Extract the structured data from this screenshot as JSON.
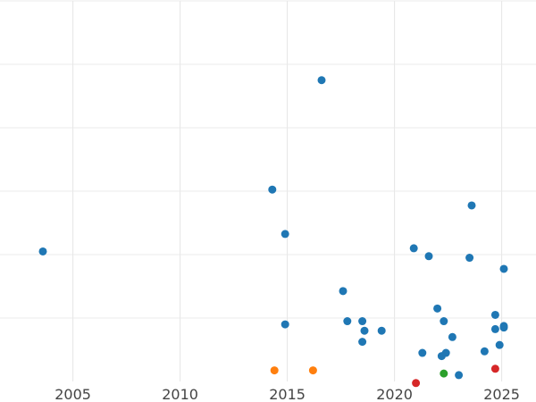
{
  "chart_data": {
    "type": "scatter",
    "title": "",
    "xlabel": "",
    "ylabel": "",
    "xlim": [
      2001.6,
      2026.6
    ],
    "ylim": [
      0,
      120
    ],
    "x_ticks": [
      2005,
      2010,
      2015,
      2020,
      2025
    ],
    "x_tick_labels": [
      "2005",
      "2010",
      "2015",
      "2020",
      "2025"
    ],
    "y_gridlines": [
      20,
      40,
      60,
      80,
      100,
      120
    ],
    "grid": "on",
    "legend": "none",
    "series": [
      {
        "color": "#1f77b4",
        "points": [
          {
            "x": 2003.6,
            "y": 41.0
          },
          {
            "x": 2014.3,
            "y": 60.5
          },
          {
            "x": 2014.9,
            "y": 46.5
          },
          {
            "x": 2014.9,
            "y": 18.0
          },
          {
            "x": 2016.6,
            "y": 95.0
          },
          {
            "x": 2017.6,
            "y": 28.5
          },
          {
            "x": 2017.8,
            "y": 19.0
          },
          {
            "x": 2018.5,
            "y": 19.0
          },
          {
            "x": 2018.6,
            "y": 16.0
          },
          {
            "x": 2018.5,
            "y": 12.5
          },
          {
            "x": 2019.4,
            "y": 16.0
          },
          {
            "x": 2020.9,
            "y": 42.0
          },
          {
            "x": 2021.3,
            "y": 9.0
          },
          {
            "x": 2021.6,
            "y": 39.5
          },
          {
            "x": 2022.0,
            "y": 23.0
          },
          {
            "x": 2022.2,
            "y": 8.0
          },
          {
            "x": 2022.3,
            "y": 19.0
          },
          {
            "x": 2022.4,
            "y": 9.0
          },
          {
            "x": 2022.7,
            "y": 14.0
          },
          {
            "x": 2023.0,
            "y": 2.0
          },
          {
            "x": 2023.5,
            "y": 39.0
          },
          {
            "x": 2023.6,
            "y": 55.5
          },
          {
            "x": 2024.2,
            "y": 9.5
          },
          {
            "x": 2024.7,
            "y": 21.0
          },
          {
            "x": 2024.7,
            "y": 16.5
          },
          {
            "x": 2024.9,
            "y": 11.5
          },
          {
            "x": 2025.1,
            "y": 17.5
          },
          {
            "x": 2025.1,
            "y": 17.0
          },
          {
            "x": 2025.1,
            "y": 35.5
          }
        ]
      },
      {
        "color": "#ff7f0e",
        "points": [
          {
            "x": 2014.4,
            "y": 3.5
          },
          {
            "x": 2016.2,
            "y": 3.5
          }
        ]
      },
      {
        "color": "#2ca02c",
        "points": [
          {
            "x": 2022.3,
            "y": 2.5
          }
        ]
      },
      {
        "color": "#d62728",
        "points": [
          {
            "x": 2021.0,
            "y": -0.5
          },
          {
            "x": 2024.7,
            "y": 4.0
          }
        ]
      }
    ]
  }
}
